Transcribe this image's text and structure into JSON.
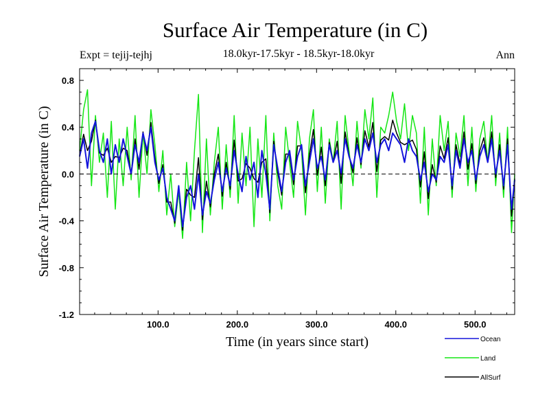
{
  "chart_data": {
    "type": "line",
    "title": "Surface Air Temperature (in C)",
    "subtitle": "18.0kyr-17.5kyr - 18.5kyr-18.0kyr",
    "expt_label": "Expt = tejij-tejhj",
    "season_label": "Ann",
    "xlabel": "Time (in years since start)",
    "ylabel": "Surface Air Temperature (in C)",
    "xlim": [
      1,
      550
    ],
    "ylim": [
      -1.2,
      0.9
    ],
    "xticks": [
      100,
      200,
      300,
      400,
      500
    ],
    "xtick_labels": [
      "100.0",
      "200.0",
      "300.0",
      "400.0",
      "500.0"
    ],
    "yticks": [
      -1.2,
      -0.8,
      -0.4,
      0.0,
      0.4,
      0.8
    ],
    "ytick_labels": [
      "-1.2",
      "-0.8",
      "-0.4",
      "0.0",
      "0.4",
      "0.8"
    ],
    "zero_line": true,
    "series": [
      {
        "name": "Ocean",
        "color": "#1414dc",
        "x": [
          1,
          6,
          11,
          16,
          21,
          26,
          31,
          36,
          41,
          46,
          51,
          56,
          61,
          66,
          71,
          76,
          81,
          86,
          91,
          96,
          101,
          106,
          111,
          116,
          121,
          126,
          131,
          136,
          141,
          146,
          151,
          156,
          161,
          166,
          171,
          176,
          181,
          186,
          191,
          196,
          201,
          206,
          211,
          216,
          221,
          226,
          231,
          236,
          241,
          246,
          251,
          256,
          261,
          266,
          271,
          276,
          281,
          286,
          291,
          296,
          301,
          306,
          311,
          316,
          321,
          326,
          331,
          336,
          341,
          346,
          351,
          356,
          361,
          366,
          371,
          376,
          381,
          386,
          391,
          396,
          401,
          406,
          411,
          416,
          421,
          426,
          431,
          436,
          441,
          446,
          451,
          456,
          461,
          466,
          471,
          476,
          481,
          486,
          491,
          496,
          501,
          506,
          511,
          516,
          521,
          526,
          531,
          536,
          541,
          546,
          550
        ],
        "values": [
          0.15,
          0.3,
          0.05,
          0.35,
          0.45,
          0.2,
          0.1,
          0.3,
          0.0,
          0.25,
          0.1,
          0.3,
          0.15,
          0.0,
          0.25,
          0.1,
          0.35,
          0.2,
          0.4,
          0.1,
          -0.05,
          0.05,
          -0.2,
          -0.3,
          -0.4,
          -0.1,
          -0.45,
          -0.2,
          -0.1,
          -0.3,
          0.0,
          -0.35,
          -0.15,
          -0.25,
          -0.05,
          0.1,
          -0.15,
          0.05,
          -0.1,
          0.2,
          0.0,
          -0.15,
          0.15,
          -0.05,
          0.1,
          -0.2,
          0.2,
          0.0,
          -0.3,
          0.25,
          0.05,
          -0.15,
          0.1,
          0.2,
          -0.05,
          0.15,
          0.25,
          -0.1,
          0.1,
          0.3,
          0.05,
          0.15,
          -0.05,
          0.25,
          0.1,
          0.2,
          0.0,
          0.3,
          0.15,
          0.05,
          0.25,
          0.1,
          0.3,
          0.2,
          0.35,
          0.1,
          0.25,
          0.3,
          0.2,
          0.35,
          0.3,
          0.25,
          0.1,
          0.3,
          0.2,
          0.15,
          -0.05,
          0.1,
          -0.15,
          0.0,
          -0.05,
          0.15,
          0.1,
          0.25,
          -0.1,
          0.2,
          0.05,
          0.3,
          0.1,
          0.2,
          -0.05,
          0.15,
          0.25,
          0.1,
          0.3,
          0.0,
          0.2,
          -0.1,
          0.25,
          -0.3,
          -0.05
        ]
      },
      {
        "name": "Land",
        "color": "#14e614",
        "x": [
          1,
          6,
          11,
          16,
          21,
          26,
          31,
          36,
          41,
          46,
          51,
          56,
          61,
          66,
          71,
          76,
          81,
          86,
          91,
          96,
          101,
          106,
          111,
          116,
          121,
          126,
          131,
          136,
          141,
          146,
          151,
          156,
          161,
          166,
          171,
          176,
          181,
          186,
          191,
          196,
          201,
          206,
          211,
          216,
          221,
          226,
          231,
          236,
          241,
          246,
          251,
          256,
          261,
          266,
          271,
          276,
          281,
          286,
          291,
          296,
          301,
          306,
          311,
          316,
          321,
          326,
          331,
          336,
          341,
          346,
          351,
          356,
          361,
          366,
          371,
          376,
          381,
          386,
          391,
          396,
          401,
          406,
          411,
          416,
          421,
          426,
          431,
          436,
          441,
          446,
          451,
          456,
          461,
          466,
          471,
          476,
          481,
          486,
          491,
          496,
          501,
          506,
          511,
          516,
          521,
          526,
          531,
          536,
          541,
          546,
          550
        ],
        "values": [
          0.2,
          0.55,
          0.72,
          -0.1,
          0.5,
          0.1,
          0.35,
          -0.2,
          0.45,
          -0.3,
          0.3,
          -0.1,
          0.4,
          -0.05,
          0.5,
          -0.2,
          0.35,
          0.0,
          0.55,
          0.25,
          -0.15,
          0.2,
          -0.35,
          0.0,
          -0.45,
          -0.15,
          -0.55,
          0.1,
          -0.4,
          0.2,
          0.68,
          -0.5,
          0.3,
          -0.35,
          0.1,
          0.4,
          -0.3,
          0.25,
          -0.2,
          0.5,
          -0.25,
          0.35,
          -0.1,
          0.4,
          -0.45,
          0.3,
          -0.2,
          0.5,
          -0.4,
          0.35,
          -0.1,
          -0.3,
          0.4,
          0.1,
          -0.2,
          0.45,
          0.2,
          -0.35,
          0.3,
          0.55,
          -0.15,
          0.4,
          -0.25,
          0.3,
          0.1,
          0.45,
          -0.3,
          0.5,
          0.2,
          -0.1,
          0.45,
          0.05,
          0.55,
          0.3,
          0.65,
          -0.2,
          0.4,
          0.35,
          0.5,
          0.7,
          0.45,
          0.3,
          0.6,
          0.2,
          0.5,
          0.35,
          -0.25,
          0.4,
          -0.35,
          0.3,
          -0.1,
          0.5,
          0.2,
          0.45,
          -0.2,
          0.35,
          0.15,
          0.5,
          -0.1,
          0.4,
          -0.15,
          0.3,
          0.45,
          0.1,
          0.5,
          -0.1,
          0.35,
          -0.2,
          0.4,
          -0.5,
          0.0
        ]
      },
      {
        "name": "AllSurf",
        "color": "#000000",
        "x": [
          1,
          6,
          11,
          16,
          21,
          26,
          31,
          36,
          41,
          46,
          51,
          56,
          61,
          66,
          71,
          76,
          81,
          86,
          91,
          96,
          101,
          106,
          111,
          116,
          121,
          126,
          131,
          136,
          141,
          146,
          151,
          156,
          161,
          166,
          171,
          176,
          181,
          186,
          191,
          196,
          201,
          206,
          211,
          216,
          221,
          226,
          231,
          236,
          241,
          246,
          251,
          256,
          261,
          266,
          271,
          276,
          281,
          286,
          291,
          296,
          301,
          306,
          311,
          316,
          321,
          326,
          331,
          336,
          341,
          346,
          351,
          356,
          361,
          366,
          371,
          376,
          381,
          386,
          391,
          396,
          401,
          406,
          411,
          416,
          421,
          426,
          431,
          436,
          441,
          446,
          451,
          456,
          461,
          466,
          471,
          476,
          481,
          486,
          491,
          496,
          501,
          506,
          511,
          516,
          521,
          526,
          531,
          536,
          541,
          546,
          550
        ],
        "values": [
          0.16,
          0.34,
          0.2,
          0.28,
          0.46,
          0.18,
          0.16,
          0.22,
          0.1,
          0.15,
          0.14,
          0.22,
          0.2,
          0.0,
          0.3,
          0.04,
          0.36,
          0.16,
          0.44,
          0.14,
          -0.08,
          0.08,
          -0.24,
          -0.24,
          -0.42,
          -0.11,
          -0.48,
          -0.13,
          -0.18,
          -0.2,
          0.14,
          -0.39,
          -0.06,
          -0.28,
          0.0,
          0.17,
          -0.19,
          0.1,
          -0.13,
          0.29,
          -0.06,
          -0.04,
          0.09,
          0.05,
          -0.04,
          -0.07,
          0.1,
          0.13,
          -0.33,
          0.28,
          0.01,
          -0.18,
          0.17,
          0.17,
          -0.09,
          0.24,
          0.24,
          -0.16,
          0.16,
          0.38,
          -0.01,
          0.23,
          -0.1,
          0.27,
          0.1,
          0.28,
          -0.08,
          0.36,
          0.16,
          0.01,
          0.31,
          0.08,
          0.37,
          0.23,
          0.44,
          0.02,
          0.29,
          0.32,
          0.29,
          0.46,
          0.35,
          0.27,
          0.25,
          0.27,
          0.29,
          0.21,
          -0.11,
          0.19,
          -0.21,
          0.08,
          -0.07,
          0.24,
          0.13,
          0.31,
          -0.13,
          0.25,
          0.08,
          0.36,
          0.04,
          0.26,
          -0.08,
          0.2,
          0.31,
          0.1,
          0.36,
          -0.03,
          0.25,
          -0.13,
          0.3,
          -0.36,
          -0.04
        ]
      }
    ]
  },
  "legend": [
    {
      "name": "Ocean",
      "color": "#1414dc"
    },
    {
      "name": "Land",
      "color": "#14e614"
    },
    {
      "name": "AllSurf",
      "color": "#000000"
    }
  ]
}
